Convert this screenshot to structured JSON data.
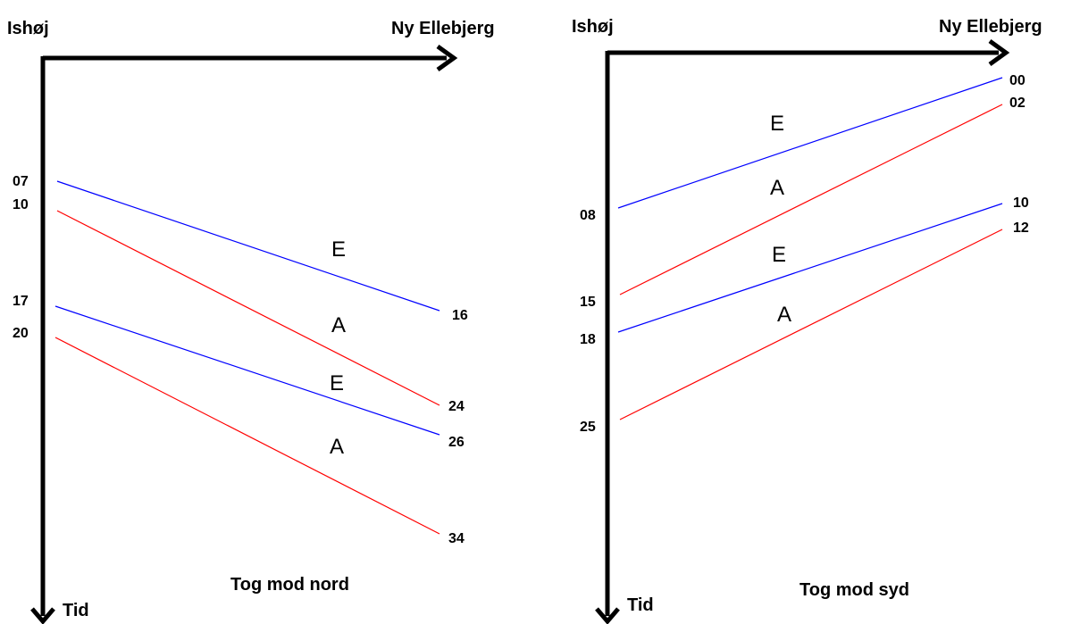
{
  "panels": [
    {
      "id": "north",
      "title": "Tog mod nord",
      "origin_station": "Ishøj",
      "end_station": "Ny Ellebjerg",
      "time_axis_label": "Tid",
      "trains": [
        {
          "service": "E",
          "depart": "07",
          "arrive": "16",
          "color": "#0000ff"
        },
        {
          "service": "A",
          "depart": "10",
          "arrive": "24",
          "color": "#ff0000"
        },
        {
          "service": "E",
          "depart": "17",
          "arrive": "26",
          "color": "#0000ff"
        },
        {
          "service": "A",
          "depart": "20",
          "arrive": "34",
          "color": "#ff0000"
        }
      ]
    },
    {
      "id": "south",
      "title": "Tog mod syd",
      "origin_station": "Ishøj",
      "end_station": "Ny Ellebjerg",
      "time_axis_label": "Tid",
      "trains": [
        {
          "service": "E",
          "depart": "00",
          "arrive": "08",
          "color": "#0000ff"
        },
        {
          "service": "A",
          "depart": "02",
          "arrive": "15",
          "color": "#ff0000"
        },
        {
          "service": "E",
          "depart": "10",
          "arrive": "18",
          "color": "#0000ff"
        },
        {
          "service": "A",
          "depart": "12",
          "arrive": "25",
          "color": "#ff0000"
        }
      ]
    }
  ]
}
